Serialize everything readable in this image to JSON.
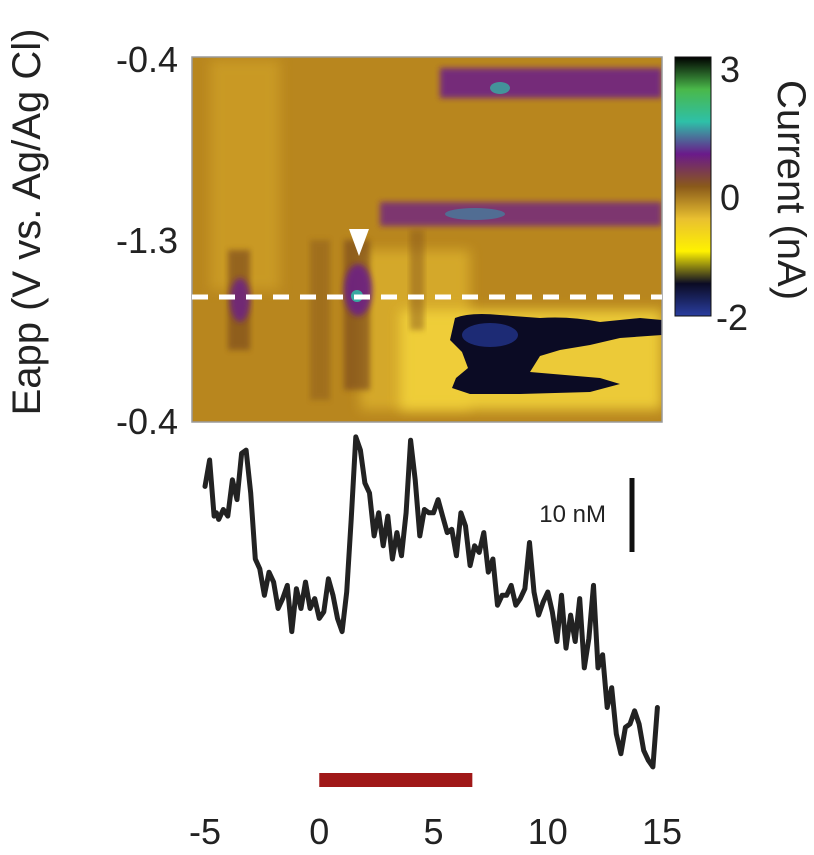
{
  "chart_data": [
    {
      "type": "heatmap",
      "title": "",
      "xlabel": "",
      "ylabel": "Eapp (V vs. Ag/Ag Cl)",
      "y_tick_labels": [
        "-0.4",
        "-1.3",
        "-0.4"
      ],
      "colorbar": {
        "label": "Current (nA)",
        "range": [
          -2,
          3
        ],
        "tick_labels": [
          "3",
          "0",
          "-2"
        ],
        "ticks": [
          3,
          0,
          -2
        ],
        "colors": [
          "#2a3ea0",
          "#0b0b24",
          "#fff200",
          "#e9c030",
          "#8a5a1a",
          "#6a1a8a",
          "#2ec0a8",
          "#4ab84a",
          "#000000"
        ]
      },
      "background_color": "#b8861e",
      "marker": "white-triangle",
      "dashed_line_color": "#ffffff",
      "bands": [
        {
          "name": "upper-purple",
          "x_range": [
            5.8,
            15
          ],
          "level": "-0.4",
          "current": 0.5
        },
        {
          "name": "middle-purple",
          "x_range": [
            4.5,
            15
          ],
          "level": "-1.3",
          "current": 0.6
        },
        {
          "name": "lower-dark",
          "x_range": [
            5.5,
            15
          ],
          "level": "-0.9",
          "current": -1.8
        }
      ]
    },
    {
      "type": "line",
      "title": "",
      "xlabel": "",
      "ylabel": "",
      "xlim": [
        -5,
        15
      ],
      "x_ticks": [
        -5,
        0,
        5,
        10,
        15
      ],
      "x_tick_labels": [
        "-5",
        "0",
        "5",
        "10",
        "15"
      ],
      "scale_bar": {
        "label": "10 nM",
        "value": 10
      },
      "stimulus_bar": {
        "x_range": [
          0,
          6.7
        ],
        "color": "#a01818"
      },
      "line_color": "#222222",
      "series": [
        {
          "x": [
            -5.0,
            -4.8,
            -4.6,
            -4.5,
            -4.4,
            -4.2,
            -4.0,
            -3.8,
            -3.6,
            -3.4,
            -3.2,
            -3.0,
            -2.8,
            -2.6,
            -2.4,
            -2.2,
            -2.0,
            -1.8,
            -1.6,
            -1.4,
            -1.2,
            -1.0,
            -0.8,
            -0.6,
            -0.4,
            -0.2,
            0.0,
            0.2,
            0.4,
            0.6,
            0.8,
            1.0,
            1.2,
            1.4,
            1.6,
            1.8,
            2.0,
            2.2,
            2.4,
            2.6,
            2.8,
            3.0,
            3.2,
            3.4,
            3.6,
            3.8,
            4.0,
            4.2,
            4.4,
            4.6,
            4.8,
            5.0,
            5.2,
            5.4,
            5.6,
            5.8,
            6.0,
            6.2,
            6.4,
            6.6,
            6.8,
            7.0,
            7.2,
            7.4,
            7.6,
            7.8,
            8.0,
            8.2,
            8.4,
            8.6,
            8.8,
            9.0,
            9.2,
            9.4,
            9.6,
            9.8,
            10.0,
            10.2,
            10.4,
            10.6,
            10.8,
            11.0,
            11.2,
            11.4,
            11.6,
            11.8,
            12.0,
            12.2,
            12.4,
            12.6,
            12.8,
            13.0,
            13.2,
            13.4,
            13.6,
            13.8,
            14.0,
            14.2,
            14.4,
            14.6,
            14.8
          ],
          "y": [
            42,
            50,
            33,
            34,
            32,
            35,
            33,
            44,
            38,
            52,
            53,
            40,
            20,
            17,
            9,
            16,
            13,
            5,
            8,
            12,
            -2,
            11,
            5,
            13,
            5,
            8,
            2,
            4,
            14,
            9,
            2,
            -2,
            10,
            32,
            57,
            53,
            43,
            40,
            27,
            34,
            24,
            33,
            20,
            28,
            21,
            34,
            56,
            44,
            27,
            35,
            34,
            34,
            38,
            33,
            28,
            29,
            21,
            34,
            30,
            18,
            24,
            22,
            28,
            16,
            20,
            6,
            9,
            9,
            12,
            6,
            8,
            11,
            25,
            10,
            3,
            7,
            10,
            4,
            -5,
            9,
            -7,
            3,
            -5,
            8,
            -13,
            -4,
            12,
            -13,
            -9,
            -25,
            -19,
            -33,
            -39,
            -31,
            -30,
            -26,
            -30,
            -38,
            -41,
            -43,
            -25
          ]
        }
      ]
    }
  ]
}
